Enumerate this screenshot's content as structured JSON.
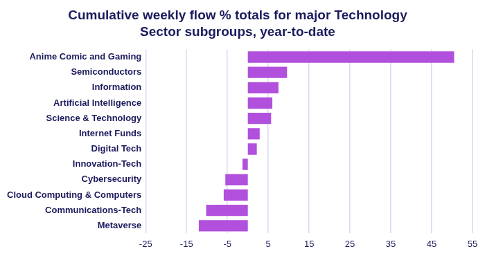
{
  "chart_data": {
    "type": "bar",
    "orientation": "horizontal",
    "title": [
      "Cumulative weekly flow % totals for major Technology",
      "Sector subgroups, year-to-date"
    ],
    "categories": [
      "Anime Comic and Gaming",
      "Semiconductors",
      "Information",
      "Artificial Intelligence",
      "Science & Technology",
      "Internet Funds",
      "Digital Tech",
      "Innovation-Tech",
      "Cybersecurity",
      "Cloud Computing & Computers",
      "Communications-Tech",
      "Metaverse"
    ],
    "values": [
      50.5,
      9.6,
      7.5,
      6.0,
      5.7,
      2.9,
      2.2,
      -1.3,
      -5.5,
      -5.9,
      -10.2,
      -12.0
    ],
    "color": "#b150dc",
    "xlim": [
      -25,
      55
    ],
    "xticks": [
      -25,
      -15,
      -5,
      5,
      15,
      25,
      35,
      45,
      55
    ],
    "grid": true
  }
}
